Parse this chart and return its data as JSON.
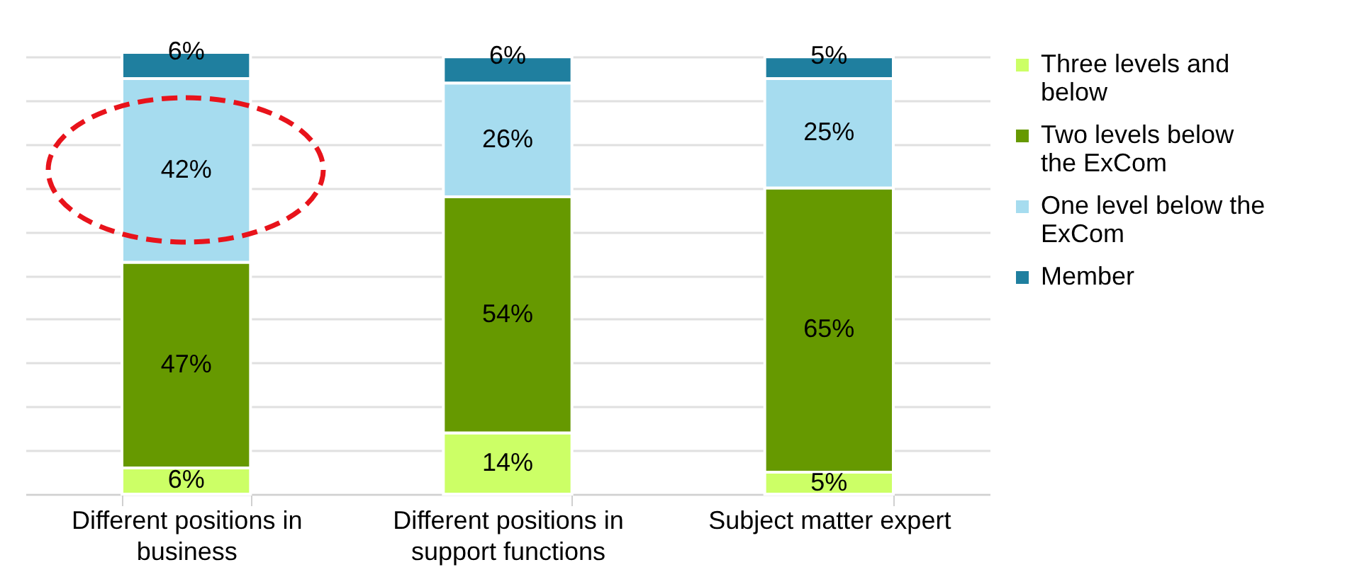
{
  "chart_data": {
    "type": "bar",
    "stacked": true,
    "categories": [
      "Different positions in business",
      "Different positions in support functions",
      "Subject matter expert"
    ],
    "series": [
      {
        "name": "Three levels and below",
        "color": "#ccff66",
        "values": [
          6,
          14,
          5
        ],
        "value_labels": [
          "6%",
          "14%",
          "5%"
        ]
      },
      {
        "name": "Two levels below the ExCom",
        "color": "#669900",
        "values": [
          47,
          54,
          65
        ],
        "value_labels": [
          "47%",
          "54%",
          "65%"
        ]
      },
      {
        "name": "One level below the ExCom",
        "color": "#a6dcef",
        "values": [
          42,
          26,
          25
        ],
        "value_labels": [
          "42%",
          "26%",
          "25%"
        ]
      },
      {
        "name": "Member",
        "color": "#1f7f9f",
        "values": [
          6,
          6,
          5
        ],
        "value_labels": [
          "6%",
          "6%",
          "5%"
        ]
      }
    ],
    "grid": "y",
    "legend": "right",
    "tick_labels": "x"
  }
}
